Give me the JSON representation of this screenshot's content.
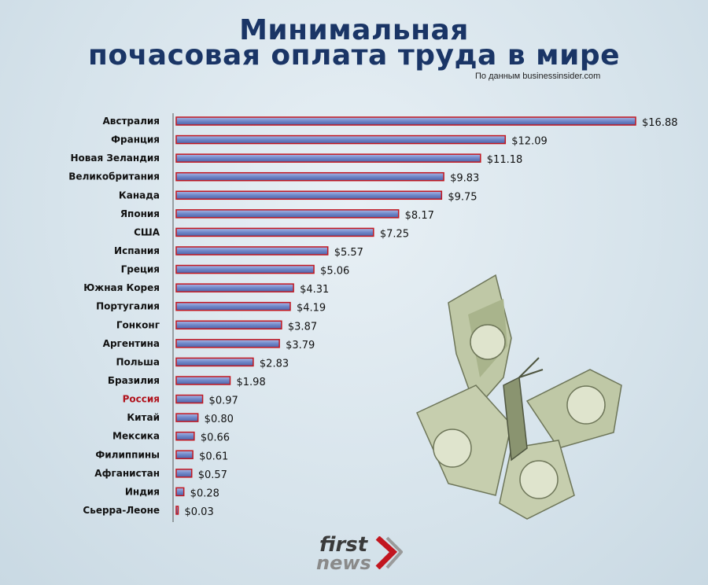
{
  "header": {
    "title_line1": "Минимальная",
    "title_line2": "почасовая оплата труда в мире",
    "source": "По данным businessinsider.com"
  },
  "logo": {
    "first": "first",
    "news": "news"
  },
  "colors": {
    "bar_fill": "#6f86c8",
    "bar_border": "#c2161f",
    "title": "#1a3566",
    "highlight_label": "#b0121c"
  },
  "chart_data": {
    "type": "bar",
    "orientation": "horizontal",
    "title": "Минимальная почасовая оплата труда в мире",
    "xlabel": "",
    "ylabel": "",
    "highlight": "Россия",
    "categories": [
      "Австралия",
      "Франция",
      "Новая Зеландия",
      "Великобритания",
      "Канада",
      "Япония",
      "США",
      "Испания",
      "Греция",
      "Южная Корея",
      "Португалия",
      "Гонконг",
      "Аргентина",
      "Польша",
      "Бразилия",
      "Россия",
      "Китай",
      "Мексика",
      "Филиппины",
      "Афганистан",
      "Индия",
      "Сьерра-Леоне"
    ],
    "values": [
      16.88,
      12.09,
      11.18,
      9.83,
      9.75,
      8.17,
      7.25,
      5.57,
      5.06,
      4.31,
      4.19,
      3.87,
      3.79,
      2.83,
      1.98,
      0.97,
      0.8,
      0.66,
      0.61,
      0.57,
      0.28,
      0.03
    ],
    "value_labels": [
      "$16.88",
      "$12.09",
      "$11.18",
      "$9.83",
      "$9.75",
      "$8.17",
      "$7.25",
      "$5.57",
      "$5.06",
      "$4.31",
      "$4.19",
      "$3.87",
      "$3.79",
      "$2.83",
      "$1.98",
      "$0.97",
      "$0.80",
      "$0.66",
      "$0.61",
      "$0.57",
      "$0.28",
      "$0.03"
    ],
    "xlim": [
      0,
      16.88
    ],
    "grid": false
  }
}
